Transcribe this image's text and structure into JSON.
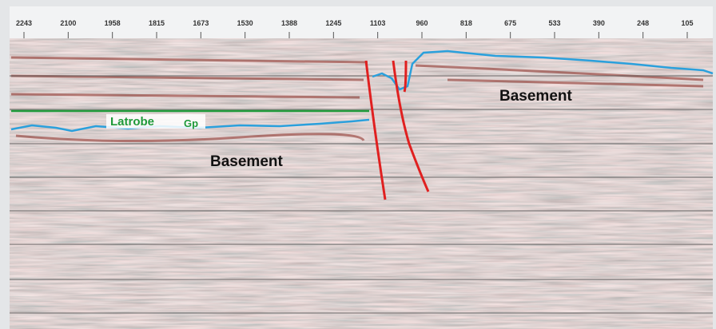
{
  "section": {
    "trace_labels": [
      "2243",
      "2100",
      "1958",
      "1815",
      "1673",
      "1530",
      "1388",
      "1245",
      "1103",
      "960",
      "818",
      "675",
      "533",
      "390",
      "248",
      "105"
    ],
    "annotations": {
      "formation": "Latrobe",
      "formation_suffix": "Gp",
      "basement_left": "Basement",
      "basement_right": "Basement"
    }
  }
}
